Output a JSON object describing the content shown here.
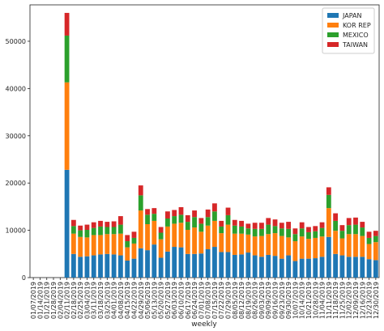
{
  "chart_data": {
    "type": "stacked_bar",
    "xlabel": "weekly",
    "categories": [
      "01/07/2019",
      "01/14/2019",
      "01/21/2019",
      "01/28/2019",
      "02/04/2019",
      "02/11/2019",
      "02/18/2019",
      "02/25/2019",
      "03/04/2019",
      "03/11/2019",
      "03/18/2019",
      "03/25/2019",
      "04/01/2019",
      "04/08/2019",
      "04/15/2019",
      "04/22/2019",
      "04/29/2019",
      "05/06/2019",
      "05/13/2019",
      "05/20/2019",
      "05/27/2019",
      "06/03/2019",
      "06/10/2019",
      "06/17/2019",
      "06/24/2019",
      "07/01/2019",
      "07/08/2019",
      "07/15/2019",
      "07/22/2019",
      "07/29/2019",
      "08/05/2019",
      "08/12/2019",
      "08/19/2019",
      "08/26/2019",
      "09/03/2019",
      "09/09/2019",
      "09/16/2019",
      "09/23/2019",
      "09/30/2019",
      "10/07/2019",
      "10/14/2019",
      "10/21/2019",
      "10/28/2019",
      "11/04/2019",
      "11/11/2019",
      "11/18/2019",
      "11/25/2019",
      "12/02/2019",
      "12/09/2019",
      "12/16/2019",
      "12/23/2019",
      "12/30/2019"
    ],
    "series": [
      {
        "name": "JAPAN",
        "color": "#1f77b4",
        "values": [
          0,
          0,
          0,
          0,
          0,
          22800,
          5000,
          4400,
          4500,
          4700,
          4900,
          5000,
          4900,
          4700,
          3600,
          4000,
          6200,
          5800,
          7000,
          4200,
          5500,
          6500,
          6400,
          5000,
          5000,
          5100,
          6000,
          6500,
          5400,
          5400,
          4800,
          4900,
          5300,
          4700,
          4400,
          4800,
          4600,
          4000,
          4700,
          3500,
          4000,
          4000,
          4100,
          4400,
          8600,
          5000,
          4700,
          4400,
          4400,
          4400,
          3900,
          3700
        ]
      },
      {
        "name": "KOR REP",
        "color": "#ff7f0e",
        "values": [
          0,
          0,
          0,
          0,
          0,
          18500,
          4300,
          4200,
          4000,
          4300,
          4100,
          4200,
          4300,
          4600,
          2800,
          3200,
          8000,
          5500,
          5000,
          3900,
          5300,
          4900,
          5200,
          5100,
          5600,
          4600,
          5000,
          5500,
          4000,
          5800,
          4500,
          4400,
          3800,
          4000,
          4400,
          4400,
          4800,
          4800,
          3800,
          4200,
          4700,
          4200,
          4300,
          4300,
          6100,
          4900,
          3600,
          4800,
          4800,
          4400,
          3200,
          3800
        ]
      },
      {
        "name": "MEXICO",
        "color": "#2ca02c",
        "values": [
          0,
          0,
          0,
          0,
          0,
          9900,
          1600,
          1400,
          1600,
          1500,
          1800,
          1500,
          1500,
          1900,
          1300,
          1200,
          3200,
          2000,
          1500,
          1400,
          1700,
          1600,
          1700,
          1700,
          2200,
          1700,
          1800,
          2000,
          1400,
          2000,
          1700,
          1500,
          1300,
          1600,
          1500,
          2000,
          1500,
          1600,
          1800,
          1500,
          1700,
          1400,
          1400,
          1800,
          2800,
          2100,
          1600,
          1900,
          2000,
          1800,
          1300,
          1300
        ]
      },
      {
        "name": "TAIWAN",
        "color": "#d62728",
        "values": [
          0,
          0,
          0,
          0,
          0,
          4800,
          1300,
          1000,
          1100,
          1200,
          1200,
          1100,
          1200,
          1800,
          1300,
          1300,
          2100,
          1200,
          1200,
          1200,
          1500,
          1300,
          1600,
          1400,
          1400,
          1200,
          1600,
          1700,
          1200,
          1600,
          1200,
          1200,
          1000,
          1300,
          1300,
          1400,
          1400,
          1200,
          1500,
          1200,
          1300,
          1100,
          1100,
          1200,
          1600,
          1600,
          1200,
          1500,
          1500,
          1200,
          1300,
          1100
        ]
      }
    ],
    "ylim": [
      0,
      57700
    ],
    "yticks": [
      0,
      10000,
      20000,
      30000,
      40000,
      50000
    ],
    "legend": "upper right"
  }
}
